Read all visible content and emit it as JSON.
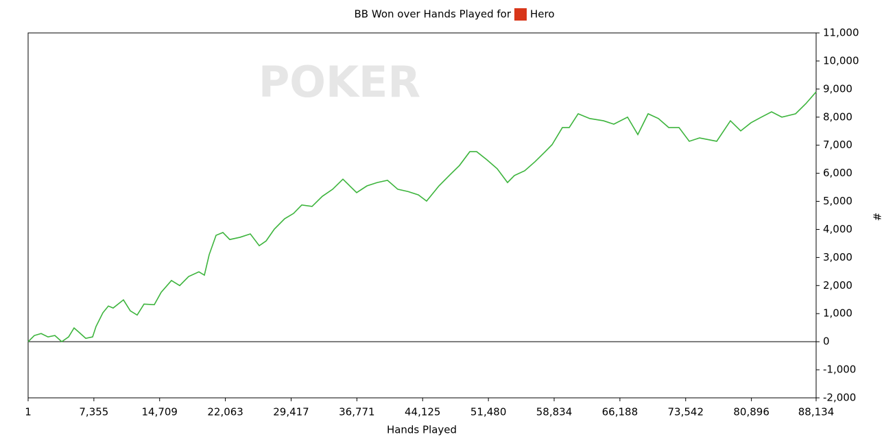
{
  "chart_data": {
    "type": "line",
    "title": "BB Won over Hands Played for",
    "player": "Hero",
    "watermark": "POKER",
    "x_label": "Hands Played",
    "y_label": "#",
    "xlim": [
      1,
      88134
    ],
    "ylim": [
      -2000,
      11000
    ],
    "xticks": [
      1,
      {
        "value": 7355,
        "label": "7,355"
      },
      {
        "value": 14709,
        "label": "14,709"
      },
      {
        "value": 22063,
        "label": "22,063"
      },
      {
        "value": 29417,
        "label": "29,417"
      },
      {
        "value": 36771,
        "label": "36,771"
      },
      {
        "value": 44125,
        "label": "44,125"
      },
      {
        "value": 51480,
        "label": "51,480"
      },
      {
        "value": 58834,
        "label": "58,834"
      },
      {
        "value": 66188,
        "label": "66,188"
      },
      {
        "value": 73542,
        "label": "73,542"
      },
      {
        "value": 80896,
        "label": "80,896"
      },
      {
        "value": 88134,
        "label": "88,134"
      }
    ],
    "yticks": [
      {
        "value": -2000,
        "label": "-2,000"
      },
      {
        "value": -1000,
        "label": "-1,000"
      },
      0,
      {
        "value": 1000,
        "label": "1,000"
      },
      {
        "value": 2000,
        "label": "2,000"
      },
      {
        "value": 3000,
        "label": "3,000"
      },
      {
        "value": 4000,
        "label": "4,000"
      },
      {
        "value": 5000,
        "label": "5,000"
      },
      {
        "value": 6000,
        "label": "6,000"
      },
      {
        "value": 7000,
        "label": "7,000"
      },
      {
        "value": 8000,
        "label": "8,000"
      },
      {
        "value": 9000,
        "label": "9,000"
      },
      {
        "value": 10000,
        "label": "10,000"
      },
      {
        "value": 11000,
        "label": "11,000"
      }
    ],
    "grid": false,
    "zero_line": true,
    "series": [
      {
        "color": "#3cb43c",
        "x": [
          1,
          691,
          1458,
          2226,
          2993,
          3760,
          4527,
          5140,
          5678,
          6445,
          7212,
          7595,
          8362,
          8976,
          9513,
          10663,
          11430,
          12197,
          12964,
          14115,
          14882,
          16033,
          16953,
          17950,
          19101,
          19715,
          20252,
          21019,
          21786,
          22553,
          23704,
          24854,
          25851,
          26618,
          27539,
          28689,
          29687,
          30607,
          31758,
          32908,
          34059,
          35209,
          35976,
          36743,
          37894,
          39044,
          40195,
          41345,
          42496,
          43647,
          44567,
          45948,
          47098,
          48249,
          49399,
          50166,
          51317,
          52467,
          53618,
          54385,
          55536,
          56686,
          57837,
          58604,
          59755,
          60522,
          61519,
          62823,
          64357,
          65508,
          67042,
          68192,
          69343,
          70493,
          71644,
          72795,
          73945,
          75096,
          77014,
          78548,
          79698,
          80849,
          82000,
          83150,
          84301,
          85835,
          86985,
          88134
        ],
        "values": [
          0,
          220,
          290,
          170,
          220,
          0,
          170,
          490,
          340,
          120,
          170,
          540,
          1030,
          1270,
          1200,
          1490,
          1100,
          950,
          1340,
          1320,
          1760,
          2180,
          2000,
          2320,
          2490,
          2370,
          3100,
          3790,
          3890,
          3640,
          3720,
          3840,
          3420,
          3590,
          4010,
          4380,
          4570,
          4870,
          4820,
          5180,
          5430,
          5790,
          5550,
          5310,
          5550,
          5670,
          5750,
          5430,
          5350,
          5230,
          5010,
          5550,
          5920,
          6280,
          6770,
          6770,
          6480,
          6160,
          5670,
          5920,
          6090,
          6410,
          6770,
          7020,
          7630,
          7630,
          8120,
          7950,
          7870,
          7750,
          8000,
          7380,
          8120,
          7950,
          7630,
          7630,
          7140,
          7260,
          7140,
          7870,
          7510,
          7800,
          8000,
          8190,
          8000,
          8120,
          8480,
          8900
        ]
      }
    ]
  }
}
